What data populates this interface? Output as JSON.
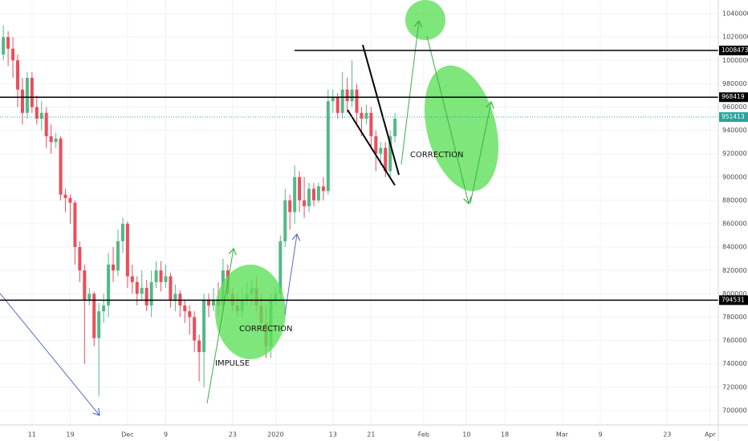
{
  "chart_data": {
    "type": "candlestick",
    "up_color": "#53b987",
    "down_color": "#eb4d5c",
    "grid": true,
    "xlim": [
      4.3,
      154.7
    ],
    "xticks": [
      11,
      19,
      {
        "value": 31,
        "label": "Dec"
      },
      {
        "value": 39,
        "label": "9"
      },
      {
        "value": 53,
        "label": "23"
      },
      {
        "value": 62,
        "label": "2020"
      },
      {
        "value": 74,
        "label": "13"
      },
      {
        "value": 82,
        "label": "21"
      },
      {
        "value": 93,
        "label": "Feb"
      },
      {
        "value": 102,
        "label": "10"
      },
      {
        "value": 110,
        "label": "18"
      },
      {
        "value": 122,
        "label": "Mar"
      },
      {
        "value": 130,
        "label": "9"
      },
      {
        "value": 144,
        "label": "23"
      },
      {
        "value": 153,
        "label": "Apr"
      }
    ],
    "ylim": [
      687600,
      1051700
    ],
    "yticks": [
      700000,
      720000,
      740000,
      760000,
      780000,
      800000,
      820000,
      840000,
      860000,
      880000,
      900000,
      920000,
      940000,
      960000,
      980000,
      1000000,
      1020000,
      1040000
    ],
    "x": [
      5,
      6,
      7,
      8,
      9,
      10,
      11,
      12,
      13,
      14,
      15,
      16,
      17,
      18,
      19,
      20,
      21,
      22,
      23,
      24,
      25,
      26,
      27,
      28,
      29,
      30,
      31,
      32,
      33,
      34,
      35,
      36,
      37,
      38,
      39,
      40,
      41,
      42,
      43,
      44,
      45,
      46,
      47,
      48,
      49,
      50,
      51,
      52,
      53,
      54,
      55,
      56,
      57,
      58,
      59,
      60,
      61,
      62,
      63,
      64,
      65,
      66,
      67,
      68,
      69,
      70,
      71,
      72,
      73,
      74,
      75,
      76,
      77,
      78,
      79,
      80,
      81,
      82,
      83,
      84,
      85,
      86,
      87
    ],
    "open": [
      1005000,
      1020000,
      1010000,
      1000000,
      975000,
      955000,
      985000,
      960000,
      950000,
      955000,
      935000,
      930000,
      933000,
      885000,
      882000,
      878000,
      840000,
      820000,
      795000,
      800000,
      762000,
      785000,
      790000,
      825000,
      820000,
      845000,
      860000,
      815000,
      810000,
      800000,
      805000,
      790000,
      810000,
      820000,
      810000,
      815000,
      795000,
      800000,
      790000,
      785000,
      780000,
      760000,
      750000,
      795000,
      790000,
      795000,
      790000,
      820000,
      800000,
      790000,
      785000,
      795000,
      800000,
      805000,
      790000,
      775000,
      755000,
      795000,
      800000,
      845000,
      880000,
      870000,
      900000,
      880000,
      875000,
      890000,
      880000,
      892000,
      888000,
      965000,
      968000,
      955000,
      975000,
      965000,
      975000,
      955000,
      950000,
      955000,
      935000,
      920000,
      925000,
      905000,
      935000
    ],
    "high": [
      1030000,
      1025000,
      1020000,
      1005000,
      985000,
      990000,
      990000,
      970000,
      965000,
      960000,
      945000,
      938000,
      935000,
      890000,
      885000,
      880000,
      845000,
      825000,
      805000,
      802000,
      792000,
      800000,
      835000,
      840000,
      855000,
      865000,
      862000,
      825000,
      815000,
      820000,
      812000,
      820000,
      828000,
      828000,
      825000,
      818000,
      808000,
      803000,
      795000,
      790000,
      785000,
      765000,
      800000,
      800000,
      805000,
      810000,
      830000,
      825000,
      805000,
      800000,
      805000,
      810000,
      812000,
      815000,
      800000,
      790000,
      800000,
      805000,
      850000,
      890000,
      885000,
      910000,
      905000,
      900000,
      895000,
      895000,
      895000,
      900000,
      975000,
      975000,
      972000,
      990000,
      985000,
      1000000,
      980000,
      960000,
      962000,
      960000,
      940000,
      930000,
      930000,
      940000,
      955000
    ],
    "low": [
      1000000,
      995000,
      985000,
      960000,
      945000,
      950000,
      955000,
      945000,
      940000,
      925000,
      920000,
      925000,
      880000,
      870000,
      860000,
      825000,
      810000,
      740000,
      790000,
      755000,
      712000,
      775000,
      780000,
      810000,
      815000,
      835000,
      805000,
      800000,
      790000,
      795000,
      785000,
      780000,
      805000,
      802000,
      805000,
      788000,
      785000,
      780000,
      775000,
      765000,
      750000,
      725000,
      720000,
      780000,
      785000,
      780000,
      785000,
      795000,
      785000,
      780000,
      780000,
      790000,
      790000,
      785000,
      770000,
      745000,
      745000,
      790000,
      795000,
      840000,
      855000,
      860000,
      870000,
      865000,
      870000,
      875000,
      878000,
      880000,
      885000,
      955000,
      950000,
      950000,
      955000,
      960000,
      945000,
      935000,
      945000,
      925000,
      905000,
      910000,
      900000,
      900000,
      930000
    ],
    "close": [
      1020000,
      1010000,
      1000000,
      975000,
      955000,
      985000,
      960000,
      950000,
      955000,
      935000,
      930000,
      933000,
      885000,
      882000,
      878000,
      840000,
      820000,
      795000,
      800000,
      762000,
      785000,
      790000,
      825000,
      820000,
      845000,
      860000,
      815000,
      810000,
      800000,
      805000,
      790000,
      810000,
      820000,
      810000,
      815000,
      795000,
      800000,
      790000,
      785000,
      780000,
      760000,
      750000,
      795000,
      790000,
      795000,
      790000,
      820000,
      800000,
      790000,
      785000,
      795000,
      800000,
      805000,
      790000,
      775000,
      755000,
      795000,
      800000,
      845000,
      880000,
      870000,
      900000,
      880000,
      875000,
      890000,
      880000,
      892000,
      888000,
      965000,
      968000,
      955000,
      975000,
      965000,
      975000,
      955000,
      950000,
      955000,
      935000,
      920000,
      925000,
      905000,
      935000,
      950000
    ],
    "hlines": [
      {
        "value": 1008473,
        "label": "1008473",
        "color": "#000000"
      },
      {
        "value": 968419,
        "label": "968419",
        "color": "#000000"
      },
      {
        "value": 794531,
        "label": "794531",
        "color": "#000000"
      },
      {
        "value": 951413,
        "label": "951413",
        "color": "#26a69a"
      }
    ],
    "annotations": [
      "IMPULSE",
      "CORRECTION",
      "CORRECTION"
    ]
  }
}
